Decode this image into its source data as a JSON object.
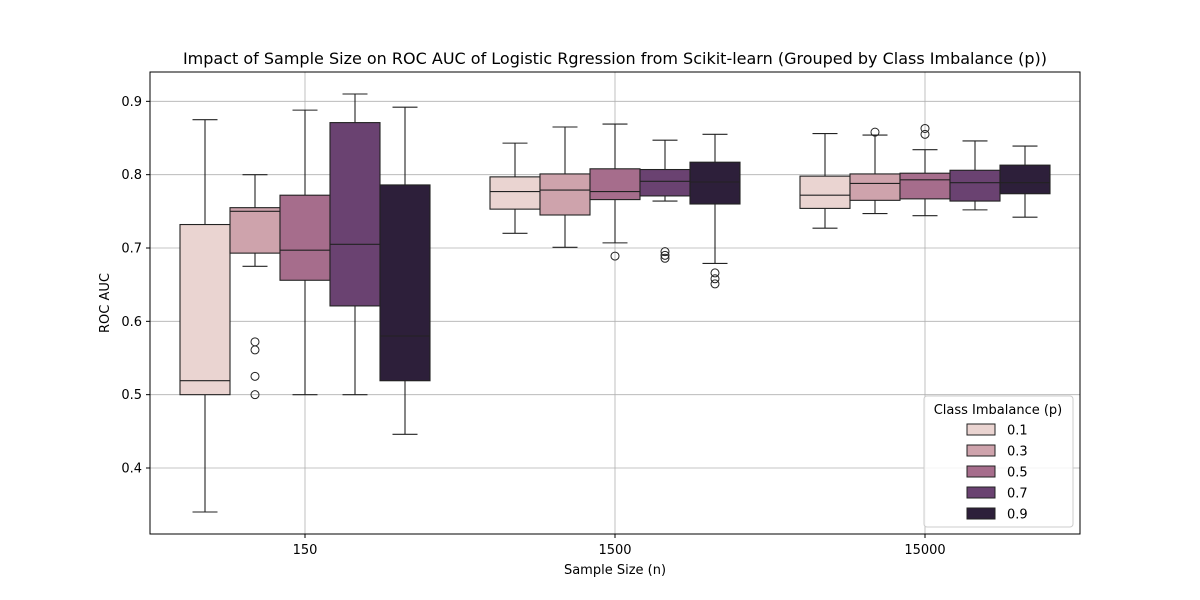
{
  "chart_data": {
    "type": "boxplot",
    "title": "Impact of Sample Size on ROC AUC of Logistic Rgression from Scikit-learn (Grouped by Class Imbalance (p))",
    "xlabel": "Sample Size (n)",
    "ylabel": "ROC AUC",
    "ylim": [
      0.31,
      0.94
    ],
    "yticks": [
      0.4,
      0.5,
      0.6,
      0.7,
      0.8,
      0.9
    ],
    "ytick_labels": [
      "0.4",
      "0.5",
      "0.6",
      "0.7",
      "0.8",
      "0.9"
    ],
    "grid": true,
    "categories": [
      "150",
      "1500",
      "15000"
    ],
    "legend": {
      "title": "Class Imbalance (p)",
      "placement": "lower-right",
      "entries": [
        "0.1",
        "0.3",
        "0.5",
        "0.7",
        "0.9"
      ]
    },
    "series": [
      {
        "name": "0.1",
        "color": "#ead4d1",
        "boxes": [
          {
            "whislo": 0.34,
            "q1": 0.5,
            "med": 0.519,
            "q3": 0.732,
            "whishi": 0.875,
            "fliers": []
          },
          {
            "whislo": 0.72,
            "q1": 0.753,
            "med": 0.777,
            "q3": 0.797,
            "whishi": 0.843,
            "fliers": []
          },
          {
            "whislo": 0.727,
            "q1": 0.754,
            "med": 0.772,
            "q3": 0.798,
            "whishi": 0.856,
            "fliers": []
          }
        ]
      },
      {
        "name": "0.3",
        "color": "#cea3ac",
        "boxes": [
          {
            "whislo": 0.675,
            "q1": 0.693,
            "med": 0.75,
            "q3": 0.755,
            "whishi": 0.8,
            "fliers": [
              0.572,
              0.561,
              0.525,
              0.5
            ]
          },
          {
            "whislo": 0.701,
            "q1": 0.745,
            "med": 0.779,
            "q3": 0.801,
            "whishi": 0.865,
            "fliers": []
          },
          {
            "whislo": 0.747,
            "q1": 0.765,
            "med": 0.788,
            "q3": 0.801,
            "whishi": 0.854,
            "fliers": [
              0.858
            ]
          }
        ]
      },
      {
        "name": "0.5",
        "color": "#a66d8c",
        "boxes": [
          {
            "whislo": 0.5,
            "q1": 0.656,
            "med": 0.697,
            "q3": 0.772,
            "whishi": 0.888,
            "fliers": []
          },
          {
            "whislo": 0.707,
            "q1": 0.766,
            "med": 0.777,
            "q3": 0.808,
            "whishi": 0.869,
            "fliers": [
              0.689
            ]
          },
          {
            "whislo": 0.744,
            "q1": 0.767,
            "med": 0.793,
            "q3": 0.802,
            "whishi": 0.834,
            "fliers": [
              0.863,
              0.855
            ]
          }
        ]
      },
      {
        "name": "0.7",
        "color": "#6a4271",
        "boxes": [
          {
            "whislo": 0.5,
            "q1": 0.621,
            "med": 0.705,
            "q3": 0.871,
            "whishi": 0.91,
            "fliers": []
          },
          {
            "whislo": 0.764,
            "q1": 0.771,
            "med": 0.791,
            "q3": 0.807,
            "whishi": 0.847,
            "fliers": [
              0.695,
              0.69,
              0.686
            ]
          },
          {
            "whislo": 0.752,
            "q1": 0.764,
            "med": 0.789,
            "q3": 0.806,
            "whishi": 0.846,
            "fliers": []
          }
        ]
      },
      {
        "name": "0.9",
        "color": "#2d1f3a",
        "boxes": [
          {
            "whislo": 0.446,
            "q1": 0.519,
            "med": 0.58,
            "q3": 0.786,
            "whishi": 0.892,
            "fliers": []
          },
          {
            "whislo": 0.679,
            "q1": 0.76,
            "med": 0.79,
            "q3": 0.817,
            "whishi": 0.855,
            "fliers": [
              0.666,
              0.658,
              0.651
            ]
          },
          {
            "whislo": 0.742,
            "q1": 0.774,
            "med": 0.789,
            "q3": 0.813,
            "whishi": 0.839,
            "fliers": []
          }
        ]
      }
    ]
  }
}
